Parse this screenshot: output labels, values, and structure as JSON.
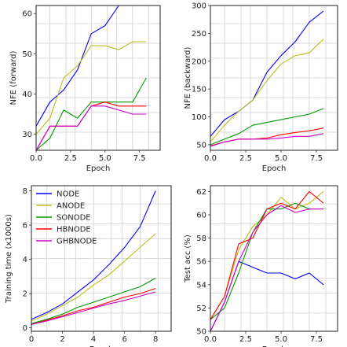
{
  "chart_data": [
    {
      "type": "line",
      "xlabel": "Epoch",
      "ylabel": "NFE (forward)",
      "xlim": [
        0,
        9
      ],
      "ylim": [
        26,
        62
      ],
      "xticks": [
        "0.0",
        "2.5",
        "5.0",
        "7.5"
      ],
      "yticks": [
        "30",
        "40",
        "50",
        "60"
      ],
      "grid": true,
      "x": [
        0,
        1,
        2,
        3,
        4,
        5,
        6,
        7,
        8
      ],
      "series": [
        {
          "name": "NODE",
          "color": "#0000ff",
          "values": [
            32,
            38,
            41,
            46,
            55,
            57,
            62,
            62,
            62
          ]
        },
        {
          "name": "ANODE",
          "color": "#bdbd1a",
          "values": [
            30,
            34,
            44,
            47,
            52,
            52,
            51,
            53,
            53
          ]
        },
        {
          "name": "SONODE",
          "color": "#009900",
          "values": [
            26,
            29,
            36,
            34,
            38,
            38,
            38,
            38,
            44
          ]
        },
        {
          "name": "HBNODE",
          "color": "#ff0000",
          "values": [
            26,
            32,
            32,
            32,
            37,
            38,
            37,
            37,
            37
          ]
        },
        {
          "name": "GHBNODE",
          "color": "#cc00cc",
          "values": [
            26,
            32,
            32,
            32,
            37,
            37,
            36,
            35,
            35
          ]
        }
      ]
    },
    {
      "type": "line",
      "xlabel": "Epoch",
      "ylabel": "NFE (backward)",
      "xlim": [
        0,
        9
      ],
      "ylim": [
        40,
        300
      ],
      "xticks": [
        "0.0",
        "2.5",
        "5.0",
        "7.5"
      ],
      "yticks": [
        "50",
        "100",
        "150",
        "200",
        "250",
        "300"
      ],
      "grid": true,
      "x": [
        0,
        1,
        2,
        3,
        4,
        5,
        6,
        7,
        8
      ],
      "series": [
        {
          "name": "NODE",
          "color": "#0000ff",
          "values": [
            65,
            95,
            110,
            130,
            180,
            210,
            235,
            270,
            290
          ]
        },
        {
          "name": "ANODE",
          "color": "#bdbd1a",
          "values": [
            55,
            85,
            110,
            130,
            165,
            195,
            210,
            215,
            240
          ]
        },
        {
          "name": "SONODE",
          "color": "#009900",
          "values": [
            50,
            60,
            70,
            85,
            90,
            95,
            100,
            105,
            115
          ]
        },
        {
          "name": "HBNODE",
          "color": "#ff0000",
          "values": [
            48,
            55,
            60,
            60,
            62,
            68,
            72,
            75,
            80
          ]
        },
        {
          "name": "GHBNODE",
          "color": "#cc00cc",
          "values": [
            47,
            55,
            60,
            60,
            60,
            62,
            65,
            65,
            70
          ]
        }
      ]
    },
    {
      "type": "line",
      "xlabel": "Epoch",
      "ylabel": "Training time (x1000s)",
      "xlim": [
        0,
        9
      ],
      "ylim": [
        -0.2,
        8.3
      ],
      "xticks": [
        "0",
        "2",
        "4",
        "6",
        "8"
      ],
      "yticks": [
        "0",
        "2",
        "4",
        "6",
        "8"
      ],
      "grid": true,
      "legend": "upper-left",
      "x": [
        0,
        1,
        2,
        3,
        4,
        5,
        6,
        7,
        8
      ],
      "series": [
        {
          "name": "NODE",
          "color": "#0000ff",
          "values": [
            0.5,
            0.9,
            1.4,
            2.1,
            2.8,
            3.7,
            4.7,
            5.9,
            8.0
          ]
        },
        {
          "name": "ANODE",
          "color": "#bdbd1a",
          "values": [
            0.4,
            0.8,
            1.3,
            1.8,
            2.5,
            3.1,
            3.9,
            4.7,
            5.5
          ]
        },
        {
          "name": "SONODE",
          "color": "#009900",
          "values": [
            0.25,
            0.5,
            0.8,
            1.2,
            1.5,
            1.8,
            2.1,
            2.4,
            2.9
          ]
        },
        {
          "name": "HBNODE",
          "color": "#ff0000",
          "values": [
            0.2,
            0.45,
            0.7,
            1.0,
            1.2,
            1.5,
            1.8,
            2.0,
            2.3
          ]
        },
        {
          "name": "GHBNODE",
          "color": "#cc00cc",
          "values": [
            0.2,
            0.4,
            0.65,
            0.9,
            1.15,
            1.4,
            1.6,
            1.85,
            2.1
          ]
        }
      ]
    },
    {
      "type": "line",
      "xlabel": "Epoch",
      "ylabel": "Test acc (%)",
      "xlim": [
        0,
        9
      ],
      "ylim": [
        50,
        62.5
      ],
      "xticks": [
        "0.0",
        "2.5",
        "5.0",
        "7.5"
      ],
      "yticks": [
        "50",
        "52",
        "54",
        "56",
        "58",
        "60",
        "62"
      ],
      "grid": true,
      "x": [
        0,
        1,
        2,
        3,
        4,
        5,
        6,
        7,
        8
      ],
      "series": [
        {
          "name": "NODE",
          "color": "#0000ff",
          "values": [
            50,
            52.5,
            56,
            55.5,
            55,
            55,
            54.5,
            55,
            54
          ]
        },
        {
          "name": "ANODE",
          "color": "#bdbd1a",
          "values": [
            51,
            53,
            57,
            59,
            60,
            61.5,
            60.5,
            61,
            62
          ]
        },
        {
          "name": "SONODE",
          "color": "#009900",
          "values": [
            51,
            52,
            55,
            58.5,
            60.5,
            60.5,
            61,
            60.5,
            60.5
          ]
        },
        {
          "name": "HBNODE",
          "color": "#ff0000",
          "values": [
            51,
            53,
            57.5,
            58,
            60.5,
            61,
            60.5,
            62,
            61
          ]
        },
        {
          "name": "GHBNODE",
          "color": "#cc00cc",
          "values": [
            50,
            52.5,
            56,
            58.5,
            60,
            60.8,
            60.2,
            60.5,
            60.5
          ]
        }
      ]
    }
  ]
}
